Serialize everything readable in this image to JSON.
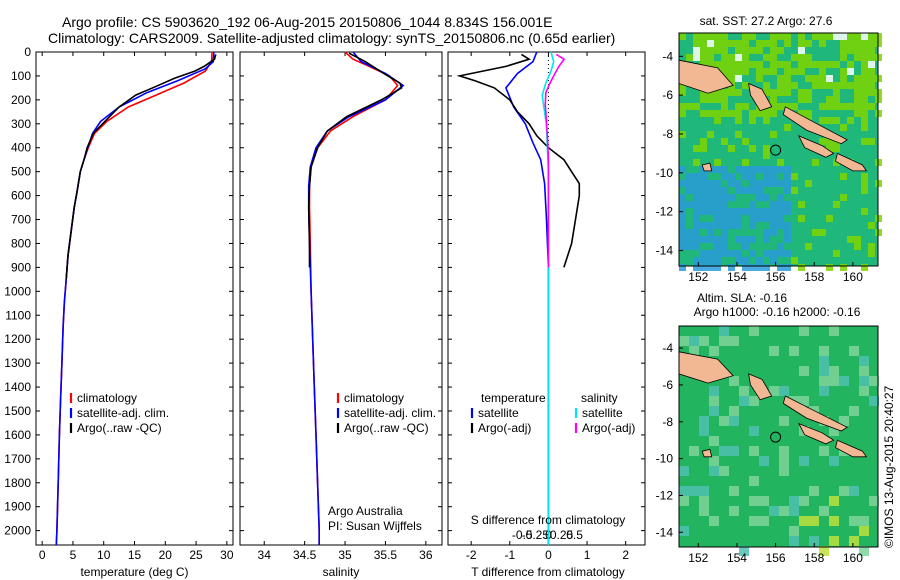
{
  "header": {
    "title_line1": "Argo profile: CS 5903620_192 06-Aug-2015 20150806_1044 8.834S 156.001E",
    "title_line2": "Climatology: CARS2009. Satellite-adjusted climatology: synTS_20150806.nc (0.65d earlier)"
  },
  "stamp": "©IMOS 13-Aug-2015 20:40:27",
  "depth_axis": {
    "ticks": [
      0,
      100,
      200,
      300,
      400,
      500,
      600,
      700,
      800,
      900,
      1000,
      1100,
      1200,
      1300,
      1400,
      1500,
      1600,
      1700,
      1800,
      1900,
      2000
    ],
    "range": [
      0,
      2060
    ]
  },
  "colors": {
    "climatology": "#ff0000",
    "satellite": "#0000ff",
    "argo": "#000000",
    "sal_satellite": "#00e5ee",
    "sal_argo": "#ff00ff",
    "dotted_zero": "#000000"
  },
  "chart_data": [
    {
      "id": "temperature",
      "type": "line",
      "xlabel": "temperature (deg C)",
      "xlim": [
        -1,
        31
      ],
      "xticks": [
        0,
        5,
        10,
        15,
        20,
        25,
        30
      ],
      "legend": [
        "climatology",
        "satellite-adj. clim.",
        "Argo(..raw -QC)"
      ],
      "series": [
        {
          "name": "climatology",
          "color": "#ff0000",
          "points": [
            [
              27.6,
              0
            ],
            [
              27.5,
              40
            ],
            [
              26.5,
              80
            ],
            [
              23,
              130
            ],
            [
              18.5,
              180
            ],
            [
              14,
              230
            ],
            [
              10.5,
              290
            ],
            [
              8.5,
              340
            ],
            [
              7.5,
              400
            ],
            [
              6.8,
              450
            ],
            [
              6.2,
              500
            ],
            [
              5.7,
              580
            ],
            [
              5.2,
              650
            ],
            [
              4.7,
              750
            ],
            [
              4.2,
              850
            ],
            [
              3.9,
              950
            ],
            [
              3.6,
              1050
            ],
            [
              3.4,
              1150
            ],
            [
              3.2,
              1300
            ],
            [
              3.0,
              1450
            ],
            [
              2.8,
              1600
            ],
            [
              2.6,
              1800
            ],
            [
              2.4,
              2000
            ],
            [
              2.3,
              2060
            ]
          ]
        },
        {
          "name": "satellite-adj. clim.",
          "color": "#0000ff",
          "points": [
            [
              27.9,
              0
            ],
            [
              27.8,
              40
            ],
            [
              26.5,
              70
            ],
            [
              22,
              120
            ],
            [
              17,
              170
            ],
            [
              12.5,
              230
            ],
            [
              9.5,
              290
            ],
            [
              8.2,
              340
            ],
            [
              7.4,
              400
            ],
            [
              6.8,
              450
            ],
            [
              6.2,
              500
            ],
            [
              5.7,
              580
            ],
            [
              5.2,
              650
            ],
            [
              4.7,
              750
            ],
            [
              4.2,
              850
            ],
            [
              3.9,
              950
            ],
            [
              3.6,
              1050
            ],
            [
              3.4,
              1150
            ],
            [
              3.2,
              1300
            ],
            [
              3.0,
              1450
            ],
            [
              2.8,
              1600
            ],
            [
              2.6,
              1800
            ],
            [
              2.4,
              2000
            ],
            [
              2.3,
              2060
            ]
          ]
        },
        {
          "name": "Argo(..raw -QC)",
          "color": "#000000",
          "points": [
            [
              28.2,
              10
            ],
            [
              28.0,
              30
            ],
            [
              26.3,
              60
            ],
            [
              24.8,
              80
            ],
            [
              21.5,
              110
            ],
            [
              18.4,
              145
            ],
            [
              15.2,
              180
            ],
            [
              12.5,
              230
            ],
            [
              10.2,
              290
            ],
            [
              8.3,
              340
            ],
            [
              7.3,
              400
            ],
            [
              6.8,
              450
            ],
            [
              6.2,
              500
            ],
            [
              5.7,
              580
            ],
            [
              5.2,
              650
            ],
            [
              4.7,
              750
            ],
            [
              4.2,
              850
            ],
            [
              3.9,
              950
            ]
          ]
        }
      ]
    },
    {
      "id": "salinity",
      "type": "line",
      "xlabel": "salinity",
      "xlim": [
        33.7,
        36.2
      ],
      "xticks": [
        34,
        34.5,
        35,
        35.5,
        36
      ],
      "legend": [
        "climatology",
        "satellite-adj. clim.",
        "Argo(..raw -QC)"
      ],
      "annotation": [
        "Argo Australia",
        "PI: Susan Wijffels"
      ],
      "series": [
        {
          "name": "climatology",
          "color": "#ff0000",
          "points": [
            [
              35.0,
              0
            ],
            [
              35.1,
              30
            ],
            [
              35.3,
              60
            ],
            [
              35.55,
              100
            ],
            [
              35.65,
              140
            ],
            [
              35.5,
              200
            ],
            [
              35.1,
              270
            ],
            [
              34.82,
              330
            ],
            [
              34.66,
              400
            ],
            [
              34.58,
              480
            ],
            [
              34.56,
              560
            ],
            [
              34.56,
              650
            ],
            [
              34.57,
              800
            ],
            [
              34.58,
              1000
            ],
            [
              34.6,
              1200
            ],
            [
              34.62,
              1400
            ],
            [
              34.64,
              1600
            ],
            [
              34.66,
              1800
            ],
            [
              34.68,
              2000
            ],
            [
              34.68,
              2060
            ]
          ]
        },
        {
          "name": "satellite-adj. clim.",
          "color": "#0000ff",
          "points": [
            [
              35.1,
              0
            ],
            [
              35.2,
              40
            ],
            [
              35.5,
              90
            ],
            [
              35.72,
              140
            ],
            [
              35.5,
              200
            ],
            [
              35.05,
              270
            ],
            [
              34.78,
              330
            ],
            [
              34.64,
              400
            ],
            [
              34.57,
              480
            ],
            [
              34.55,
              560
            ],
            [
              34.55,
              650
            ],
            [
              34.56,
              800
            ],
            [
              34.58,
              1000
            ],
            [
              34.6,
              1200
            ],
            [
              34.62,
              1400
            ],
            [
              34.64,
              1600
            ],
            [
              34.66,
              1800
            ],
            [
              34.68,
              2000
            ],
            [
              34.68,
              2060
            ]
          ]
        },
        {
          "name": "Argo(..raw -QC)",
          "color": "#000000",
          "points": [
            [
              35.05,
              5
            ],
            [
              35.25,
              40
            ],
            [
              35.48,
              90
            ],
            [
              35.58,
              110
            ],
            [
              35.68,
              130
            ],
            [
              35.7,
              150
            ],
            [
              35.45,
              200
            ],
            [
              35.02,
              270
            ],
            [
              34.78,
              330
            ],
            [
              34.66,
              400
            ],
            [
              34.58,
              480
            ],
            [
              34.56,
              560
            ],
            [
              34.55,
              650
            ],
            [
              34.56,
              800
            ],
            [
              34.56,
              900
            ]
          ]
        }
      ]
    },
    {
      "id": "difference",
      "type": "line",
      "xlabel_bottom": "T difference from climatology",
      "xlabel_top": "S difference from climatology",
      "xlim_T": [
        -2.6,
        2.5
      ],
      "xticks_T": [
        -2,
        -1,
        0,
        1,
        2
      ],
      "xlim_S": [
        -0.62,
        0.62
      ],
      "xticks_S": [
        -0.5,
        -0.25,
        0,
        0.25,
        0.5
      ],
      "xticklabels_S": [
        "-0.5",
        "-0.25",
        "0",
        "0.25",
        "0.5"
      ],
      "legend_T": {
        "title": "temperature",
        "items": [
          "satellite",
          "Argo(-adj)"
        ]
      },
      "legend_S": {
        "title": "salinity",
        "items": [
          "satellite",
          "Argo(-adj)"
        ]
      },
      "series": [
        {
          "name": "satellite",
          "group": "temperature",
          "color": "#0000ff",
          "points": [
            [
              -0.3,
              0
            ],
            [
              -0.4,
              40
            ],
            [
              -0.8,
              90
            ],
            [
              -1.1,
              150
            ],
            [
              -0.9,
              230
            ],
            [
              -0.6,
              300
            ],
            [
              -0.4,
              380
            ],
            [
              -0.2,
              450
            ],
            [
              -0.1,
              550
            ],
            [
              -0.05,
              700
            ],
            [
              0,
              900
            ],
            [
              0,
              1200
            ],
            [
              0,
              1500
            ],
            [
              0,
              1800
            ],
            [
              0,
              2060
            ]
          ]
        },
        {
          "name": "Argo(-adj)",
          "group": "temperature",
          "color": "#000000",
          "points": [
            [
              -0.7,
              10
            ],
            [
              -0.5,
              30
            ],
            [
              -1.1,
              60
            ],
            [
              -1.7,
              80
            ],
            [
              -2.3,
              100
            ],
            [
              -1.9,
              120
            ],
            [
              -1.4,
              150
            ],
            [
              -1.0,
              200
            ],
            [
              -0.8,
              250
            ],
            [
              -0.5,
              300
            ],
            [
              -0.3,
              350
            ],
            [
              0,
              400
            ],
            [
              0.4,
              450
            ],
            [
              0.6,
              500
            ],
            [
              0.8,
              550
            ],
            [
              0.8,
              600
            ],
            [
              0.7,
              700
            ],
            [
              0.6,
              800
            ],
            [
              0.4,
              900
            ]
          ]
        },
        {
          "name": "satellite",
          "group": "salinity",
          "color": "#00e5ee",
          "points": [
            [
              0.05,
              0
            ],
            [
              0.1,
              40
            ],
            [
              0.05,
              80
            ],
            [
              -0.05,
              130
            ],
            [
              -0.12,
              180
            ],
            [
              -0.08,
              240
            ],
            [
              -0.04,
              300
            ],
            [
              -0.02,
              400
            ],
            [
              0,
              500
            ],
            [
              0,
              700
            ],
            [
              0,
              1000
            ],
            [
              0,
              1500
            ],
            [
              0,
              2060
            ]
          ]
        },
        {
          "name": "Argo(-adj)",
          "group": "salinity",
          "color": "#ff00ff",
          "points": [
            [
              0.15,
              10
            ],
            [
              0.3,
              30
            ],
            [
              0.2,
              60
            ],
            [
              0.15,
              80
            ],
            [
              0.1,
              100
            ],
            [
              0.03,
              130
            ],
            [
              -0.05,
              170
            ],
            [
              -0.06,
              220
            ],
            [
              -0.04,
              280
            ],
            [
              -0.02,
              350
            ],
            [
              0,
              450
            ],
            [
              0,
              600
            ],
            [
              0,
              800
            ],
            [
              0,
              900
            ]
          ]
        }
      ]
    },
    {
      "id": "sst_map",
      "type": "heatmap",
      "title": "sat. SST: 27.2  Argo: 27.6",
      "xlim": [
        151,
        161.3
      ],
      "ylim": [
        -14.8,
        -2.8
      ],
      "xticks": [
        152,
        154,
        156,
        158,
        160
      ],
      "yticks": [
        -4,
        -6,
        -8,
        -10,
        -12,
        -14
      ],
      "marker": {
        "lon": 156.0,
        "lat": -8.834
      },
      "colors": {
        "warm": "#7fd400",
        "mid": "#1fb87a",
        "cool": "#2a9ad8",
        "missing": "#ffffff",
        "land": "#f2b893"
      }
    },
    {
      "id": "sla_map",
      "type": "heatmap",
      "title_line1": "Altim. SLA: -0.16",
      "title_line2": "Argo h1000: -0.16 h2000: -0.16",
      "xlim": [
        151,
        161.3
      ],
      "ylim": [
        -14.8,
        -2.8
      ],
      "xticks": [
        152,
        154,
        156,
        158,
        160
      ],
      "yticks": [
        -4,
        -6,
        -8,
        -10,
        -12,
        -14
      ],
      "marker": {
        "lon": 156.0,
        "lat": -8.834
      },
      "colors": {
        "base": "#22b45e",
        "light": "#7ed39a",
        "cool": "#4fc0b0",
        "warm": "#bce03c",
        "land": "#f2b893"
      }
    }
  ]
}
